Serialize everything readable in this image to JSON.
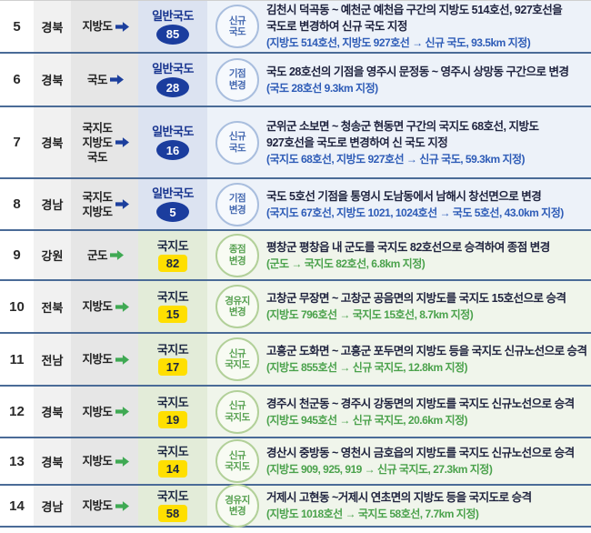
{
  "colors": {
    "separator": "#4a6b97",
    "blue_accent": "#1b3d9e",
    "green_accent": "#3fa953",
    "route_shield_yellow": "#ffdf00",
    "blue_row_bg": "#edf2f9",
    "green_row_bg": "#f0f5eb",
    "blue_sub_text": "#2e5cb7",
    "green_sub_text": "#4ba24c"
  },
  "table": {
    "rows": [
      {
        "no": "5",
        "province": "경북",
        "before": [
          "지방도"
        ],
        "scheme": "blue",
        "shield": {
          "type": "oval",
          "label": "일반국도",
          "number": "85"
        },
        "badge": [
          "신규",
          "국도"
        ],
        "desc": [
          "김천시 덕곡동 ~ 예천군 예천읍 구간의 지방도 514호선, 927호선을",
          "국도로 변경하여 신규 국도 지정"
        ],
        "sub": "(지방도 514호선, 지방도 927호선 → 신규 국도, 93.5km 지정)"
      },
      {
        "no": "6",
        "province": "경북",
        "before": [
          "국도"
        ],
        "scheme": "blue",
        "shield": {
          "type": "oval",
          "label": "일반국도",
          "number": "28"
        },
        "badge": [
          "기점",
          "변경"
        ],
        "desc": [
          "국도 28호선의 기점을 영주시 문정동 ~ 영주시 상망동 구간으로 변경"
        ],
        "sub": "(국도 28호선 9.3km 지정)"
      },
      {
        "no": "7",
        "province": "경북",
        "before": [
          "국지도",
          "지방도",
          "국도"
        ],
        "scheme": "blue",
        "shield": {
          "type": "oval",
          "label": "일반국도",
          "number": "16"
        },
        "badge": [
          "신규",
          "국도"
        ],
        "desc": [
          "군위군 소보면 ~ 청송군 현동면 구간의 국지도 68호선, 지방도",
          "927호선을 국도로 변경하여 신 국도 지정"
        ],
        "sub": "(국지도 68호선, 지방도 927호선 → 신규 국도, 59.3km 지정)"
      },
      {
        "no": "8",
        "province": "경남",
        "before": [
          "국지도",
          "지방도"
        ],
        "scheme": "blue",
        "shield": {
          "type": "oval",
          "label": "일반국도",
          "number": "5"
        },
        "badge": [
          "기점",
          "변경"
        ],
        "desc": [
          "국도 5호선 기점을 통영시 도남동에서 남해시 창선면으로 변경"
        ],
        "sub": "(국지도 67호선, 지방도 1021, 1024호선 → 국도 5호선, 43.0km 지정)"
      },
      {
        "no": "9",
        "province": "강원",
        "before": [
          "군도"
        ],
        "scheme": "green",
        "shield": {
          "type": "rect",
          "label": "국지도",
          "number": "82"
        },
        "badge": [
          "종점",
          "변경"
        ],
        "desc": [
          "평창군 평창읍 내 군도를 국지도 82호선으로 승격하여 종점 변경"
        ],
        "sub": "(군도 → 국지도 82호선, 6.8km 지정)"
      },
      {
        "no": "10",
        "province": "전북",
        "before": [
          "지방도"
        ],
        "scheme": "green",
        "shield": {
          "type": "rect",
          "label": "국지도",
          "number": "15"
        },
        "badge": [
          "경유지",
          "변경"
        ],
        "desc": [
          "고창군 무장면 ~ 고창군 공음면의 지방도를 국지도 15호선으로 승격"
        ],
        "sub": "(지방도 796호선 → 국지도 15호선, 8.7km 지정)"
      },
      {
        "no": "11",
        "province": "전남",
        "before": [
          "지방도"
        ],
        "scheme": "green",
        "shield": {
          "type": "rect",
          "label": "국지도",
          "number": "17"
        },
        "badge": [
          "신규",
          "국지도"
        ],
        "desc": [
          "고흥군 도화면 ~ 고흥군 포두면의 지방도 등을 국지도 신규노선으로 승격"
        ],
        "sub": "(지방도 855호선 → 신규 국지도, 12.8km 지정)"
      },
      {
        "no": "12",
        "province": "경북",
        "before": [
          "지방도"
        ],
        "scheme": "green",
        "shield": {
          "type": "rect",
          "label": "국지도",
          "number": "19"
        },
        "badge": [
          "신규",
          "국지도"
        ],
        "desc": [
          "경주시 천군동 ~ 경주시 강동면의 지방도를 국지도 신규노선으로 승격"
        ],
        "sub": "(지방도 945호선 → 신규 국지도, 20.6km 지정)"
      },
      {
        "no": "13",
        "province": "경북",
        "before": [
          "지방도"
        ],
        "scheme": "green",
        "shield": {
          "type": "rect",
          "label": "국지도",
          "number": "14"
        },
        "badge": [
          "신규",
          "국지도"
        ],
        "desc": [
          "경산시 중방동 ~ 영천시 금호읍의 지방도를 국지도 신규노선으로 승격"
        ],
        "sub": "(지방도 909, 925, 919 → 신규 국지도, 27.3km 지정)"
      },
      {
        "no": "14",
        "province": "경남",
        "before": [
          "지방도"
        ],
        "scheme": "green",
        "shield": {
          "type": "rect",
          "label": "국지도",
          "number": "58"
        },
        "badge": [
          "경유지",
          "변경"
        ],
        "desc": [
          "거제시 고현동 ~거제시 연초면의 지방도 등을 국지도로 승격"
        ],
        "sub": "(지방도 1018호선 → 국지도 58호선, 7.7km 지정)"
      }
    ]
  }
}
